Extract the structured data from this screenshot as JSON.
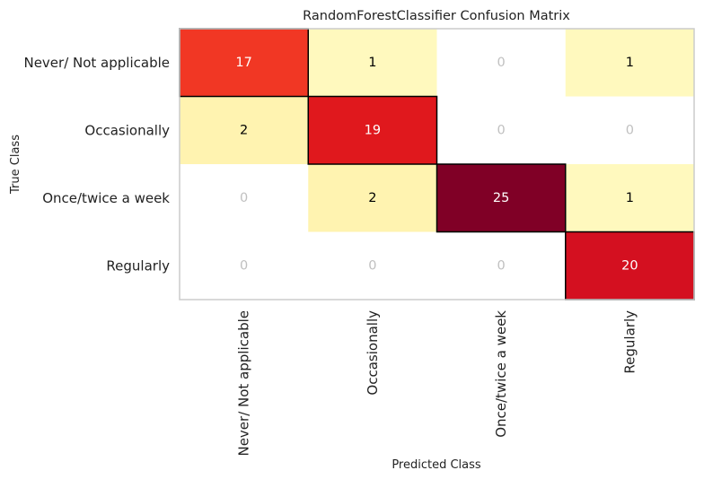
{
  "chart_data": {
    "type": "heatmap",
    "title": "RandomForestClassifier Confusion Matrix",
    "xlabel": "Predicted Class",
    "ylabel": "True Class",
    "classes": [
      "Never/ Not applicable",
      "Occasionally",
      "Once/twice a week",
      "Regularly"
    ],
    "matrix": [
      [
        17,
        1,
        0,
        1
      ],
      [
        2,
        19,
        0,
        0
      ],
      [
        0,
        2,
        25,
        1
      ],
      [
        0,
        0,
        0,
        20
      ]
    ],
    "colormap": "YlOrRd",
    "zero_color": "#ffffff",
    "zero_text_color": "#c0c0c0",
    "diagonal_outline_color": "#000000",
    "frame_color": "#cccccc",
    "grid": false
  }
}
